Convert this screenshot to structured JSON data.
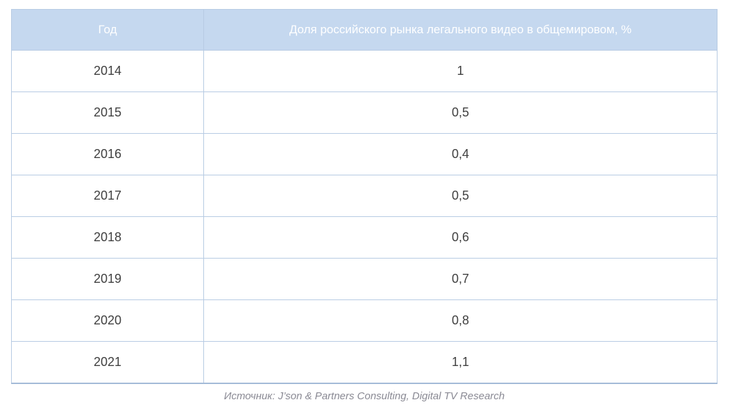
{
  "table": {
    "columns": [
      {
        "label": "Год"
      },
      {
        "label": "Доля российского рынка легального видео в общемировом, %"
      }
    ],
    "rows": [
      {
        "year": "2014",
        "share": "1"
      },
      {
        "year": "2015",
        "share": "0,5"
      },
      {
        "year": "2016",
        "share": "0,4"
      },
      {
        "year": "2017",
        "share": "0,5"
      },
      {
        "year": "2018",
        "share": "0,6"
      },
      {
        "year": "2019",
        "share": "0,7"
      },
      {
        "year": "2020",
        "share": "0,8"
      },
      {
        "year": "2021",
        "share": "1,1"
      }
    ]
  },
  "source_note": "Источник: J’son & Partners Consulting, Digital TV Research",
  "colors": {
    "header_bg": "#c5d8ef",
    "header_text": "#ffffff",
    "grid": "#b7cbe3",
    "grid_strong": "#a3bbd8",
    "cell_text": "#404040",
    "source_text": "#8a8a94"
  },
  "chart_data": {
    "type": "table",
    "columns": [
      "Год",
      "Доля российского рынка легального видео в общемировом, %"
    ],
    "rows": [
      [
        "2014",
        "1"
      ],
      [
        "2015",
        "0,5"
      ],
      [
        "2016",
        "0,4"
      ],
      [
        "2017",
        "0,5"
      ],
      [
        "2018",
        "0,6"
      ],
      [
        "2019",
        "0,7"
      ],
      [
        "2020",
        "0,8"
      ],
      [
        "2021",
        "1,1"
      ]
    ],
    "categories": [
      "2014",
      "2015",
      "2016",
      "2017",
      "2018",
      "2019",
      "2020",
      "2021"
    ],
    "values": [
      1,
      0.5,
      0.4,
      0.5,
      0.6,
      0.7,
      0.8,
      1.1
    ],
    "ylabel": "Доля российского рынка легального видео в общемировом, %",
    "source": "Источник: J’son & Partners Consulting, Digital TV Research"
  }
}
